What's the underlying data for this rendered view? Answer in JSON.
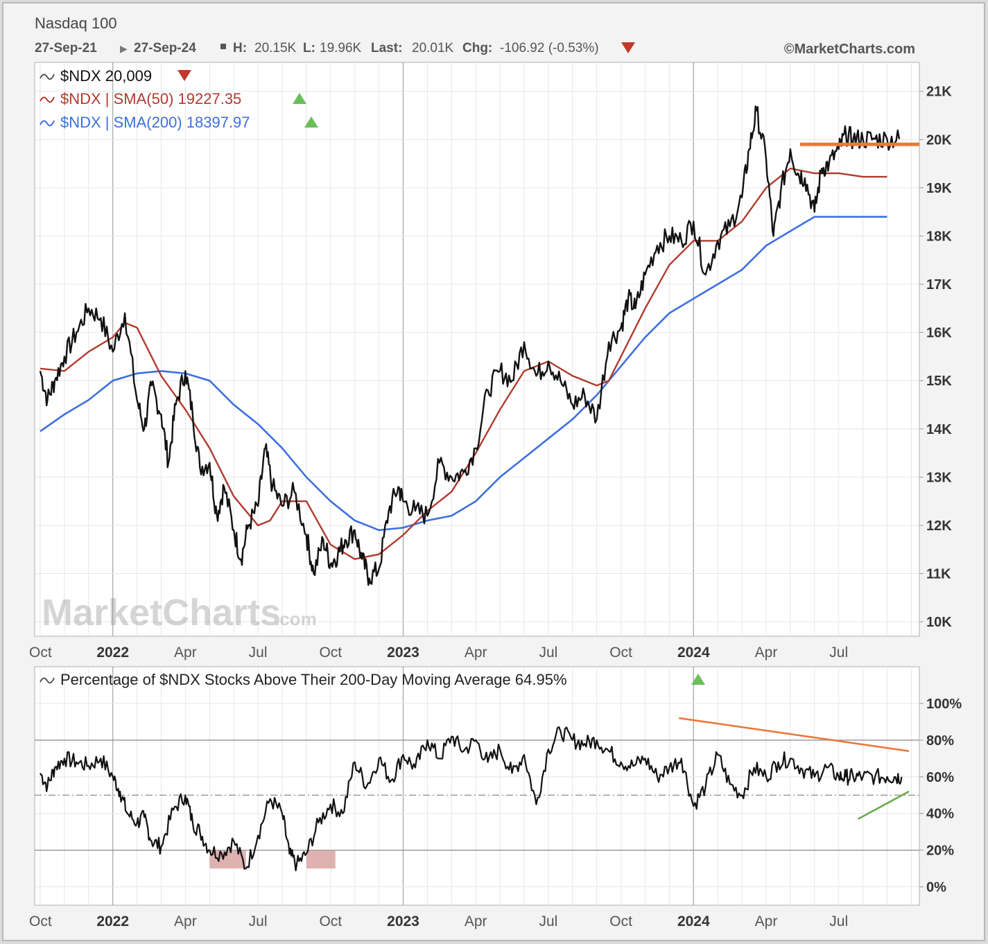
{
  "header": {
    "title": "Nasdaq 100",
    "date_range": "27-Sep-21",
    "date_end": "27-Sep-24",
    "high_label": "H:",
    "high": "20.15K",
    "low_label": "L:",
    "low": "19.96K",
    "last_label": "Last:",
    "last": "20.01K",
    "chg_label": "Chg:",
    "chg": "-106.92 (-0.53%)",
    "copyright": "©MarketCharts.com"
  },
  "watermark": {
    "main": "MarketCharts",
    "suffix": ".com"
  },
  "colors": {
    "price": "#111111",
    "sma50": "#b03a2e",
    "sma200": "#3d6fe0",
    "resistance": "#e8793a",
    "support": "#6aa84f",
    "down": "#c0392b",
    "up": "#6abf5a",
    "shade": "#d9a5a5"
  },
  "chart_data": [
    {
      "type": "line",
      "title": "Nasdaq 100",
      "legend": [
        {
          "label": "$NDX 20,009",
          "trend": "down"
        },
        {
          "label": "$NDX | SMA(50) 19227.35",
          "trend": "up"
        },
        {
          "label": "$NDX | SMA(200) 18397.97",
          "trend": "up"
        }
      ],
      "x_ticks": [
        "Oct",
        "2022",
        "Apr",
        "Jul",
        "Oct",
        "2023",
        "Apr",
        "Jul",
        "Oct",
        "2024",
        "Apr",
        "Jul"
      ],
      "y_ticks": [
        "10K",
        "11K",
        "12K",
        "13K",
        "14K",
        "15K",
        "16K",
        "17K",
        "18K",
        "19K",
        "20K",
        "21K"
      ],
      "ylim": [
        9700,
        21600
      ],
      "x_months_range": [
        0,
        36
      ],
      "series": [
        {
          "name": "$NDX",
          "x": [
            0,
            0.3,
            0.6,
            1,
            1.5,
            2,
            2.5,
            3,
            3.5,
            4,
            4.3,
            4.6,
            5,
            5.3,
            5.6,
            6,
            6.3,
            6.6,
            7,
            7.3,
            7.6,
            8,
            8.3,
            8.6,
            9,
            9.3,
            9.6,
            10,
            10.5,
            11,
            11.3,
            11.7,
            12,
            12.3,
            12.6,
            13,
            13.3,
            13.6,
            14,
            14.4,
            14.8,
            15,
            15.5,
            16,
            16.5,
            17,
            17.5,
            18,
            18.5,
            19,
            19.5,
            20,
            20.5,
            21,
            21.5,
            22,
            22.5,
            23,
            23.5,
            24,
            24.3,
            24.6,
            25,
            25.5,
            26,
            26.5,
            27,
            27.5,
            28,
            28.5,
            29,
            29.3,
            29.6,
            30,
            30.3,
            30.6,
            31,
            31.3,
            31.6,
            32,
            32.3,
            32.6,
            33,
            33.3,
            33.6,
            34,
            34.5,
            35,
            35.5,
            36
          ],
          "values": [
            15200,
            14600,
            15000,
            15500,
            16000,
            16500,
            16300,
            15600,
            16400,
            14600,
            14000,
            14900,
            14300,
            13300,
            14500,
            15200,
            14300,
            13200,
            13300,
            12200,
            12800,
            11900,
            11300,
            12000,
            12400,
            13600,
            12800,
            12400,
            12700,
            11800,
            11000,
            11700,
            11200,
            11400,
            11700,
            11900,
            11300,
            10900,
            11100,
            12300,
            12800,
            12500,
            12300,
            12200,
            13300,
            13000,
            13100,
            13600,
            14800,
            15200,
            15000,
            15800,
            15100,
            15400,
            15000,
            14500,
            14700,
            14200,
            15800,
            16100,
            16700,
            16500,
            17200,
            17800,
            18000,
            17900,
            18300,
            17200,
            17900,
            18200,
            18800,
            19800,
            20600,
            19600,
            18000,
            18900,
            19800,
            19300,
            19200,
            18500,
            19400,
            19500,
            19800,
            20100,
            20000,
            20009,
            20009,
            20009,
            20009,
            20009
          ]
        },
        {
          "name": "SMA(50)",
          "x": [
            0,
            1,
            2,
            3,
            3.5,
            4,
            5,
            6,
            7,
            8,
            9,
            9.5,
            10,
            11,
            12,
            13,
            14,
            15,
            16,
            17,
            18,
            19,
            20,
            21,
            22,
            23,
            23.5,
            24,
            25,
            26,
            27,
            28,
            29,
            30,
            31,
            32,
            33,
            34,
            35,
            36
          ],
          "values": [
            15250,
            15200,
            15600,
            15900,
            16200,
            16100,
            15100,
            14400,
            13600,
            12600,
            12000,
            12100,
            12500,
            12500,
            11600,
            11300,
            11400,
            11800,
            12300,
            12700,
            13500,
            14400,
            15200,
            15400,
            15100,
            14900,
            15000,
            15500,
            16500,
            17400,
            17900,
            17900,
            18300,
            19000,
            19400,
            19300,
            19300,
            19227,
            19227,
            19227
          ]
        },
        {
          "name": "SMA(200)",
          "x": [
            0,
            1,
            2,
            3,
            4,
            5,
            6,
            7,
            8,
            9,
            10,
            11,
            12,
            13,
            14,
            15,
            16,
            17,
            18,
            19,
            20,
            21,
            22,
            23,
            24,
            25,
            26,
            27,
            28,
            29,
            30,
            31,
            32,
            33,
            34,
            35,
            36
          ],
          "values": [
            13950,
            14300,
            14600,
            15000,
            15150,
            15200,
            15150,
            15000,
            14500,
            14100,
            13600,
            13000,
            12500,
            12100,
            11900,
            11950,
            12100,
            12200,
            12500,
            13000,
            13400,
            13800,
            14200,
            14700,
            15300,
            15900,
            16400,
            16700,
            17000,
            17300,
            17800,
            18100,
            18398,
            18398,
            18398,
            18398,
            18398
          ]
        }
      ],
      "resistance_line": {
        "from_month": 31.4,
        "to_month": 36,
        "value": 19900
      }
    },
    {
      "type": "line",
      "title": "Percentage of $NDX Stocks Above Their 200-Day Moving Average 64.95%",
      "trend": "up",
      "x_ticks": [
        "Oct",
        "2022",
        "Apr",
        "Jul",
        "Oct",
        "2023",
        "Apr",
        "Jul",
        "Oct",
        "2024",
        "Apr",
        "Jul"
      ],
      "y_ticks": [
        "0%",
        "20%",
        "40%",
        "60%",
        "80%",
        "100%"
      ],
      "ylim": [
        -10,
        120
      ],
      "reference_lines": [
        80,
        50,
        20
      ],
      "x_months_range": [
        0,
        36
      ],
      "series": [
        {
          "name": "% above 200-day MA",
          "x": [
            0,
            0.3,
            0.6,
            1,
            1.5,
            2,
            2.5,
            3,
            3.3,
            3.6,
            4,
            4.3,
            4.6,
            5,
            5.5,
            6,
            6.3,
            6.6,
            7,
            7.5,
            8,
            8.5,
            9,
            9.5,
            10,
            10.3,
            10.6,
            11,
            11.5,
            12,
            12.5,
            13,
            13.5,
            14,
            14.5,
            15,
            15.5,
            16,
            16.5,
            17,
            17.5,
            18,
            18.5,
            19,
            19.5,
            20,
            20.5,
            21,
            21.5,
            22,
            22.5,
            23,
            23.5,
            24,
            24.5,
            25,
            25.5,
            26,
            26.5,
            27,
            27.5,
            28,
            28.5,
            29,
            29.5,
            30,
            30.5,
            31,
            31.5,
            32,
            32.5,
            33,
            33.3,
            33.6,
            34,
            34.5,
            35,
            35.3,
            35.6,
            36
          ],
          "values": [
            62,
            55,
            65,
            70,
            68,
            66,
            70,
            60,
            52,
            40,
            35,
            38,
            25,
            22,
            42,
            50,
            35,
            30,
            20,
            18,
            25,
            10,
            28,
            48,
            40,
            18,
            12,
            18,
            35,
            45,
            40,
            68,
            55,
            70,
            58,
            72,
            65,
            80,
            70,
            82,
            74,
            80,
            68,
            75,
            62,
            72,
            45,
            75,
            85,
            80,
            78,
            80,
            74,
            68,
            66,
            70,
            60,
            65,
            70,
            44,
            55,
            72,
            56,
            50,
            65,
            60,
            68,
            70,
            64,
            60,
            65,
            60,
            60,
            60,
            60,
            60,
            60,
            60,
            60,
            65
          ]
        }
      ],
      "shaded_regions_below_20": [
        [
          7,
          8.5
        ],
        [
          11,
          12.2
        ]
      ],
      "trend_lines": [
        {
          "name": "resistance",
          "from": [
            26.4,
            92
          ],
          "to": [
            35.9,
            74
          ]
        },
        {
          "name": "support",
          "from": [
            33.8,
            37
          ],
          "to": [
            35.9,
            52
          ]
        }
      ]
    }
  ]
}
